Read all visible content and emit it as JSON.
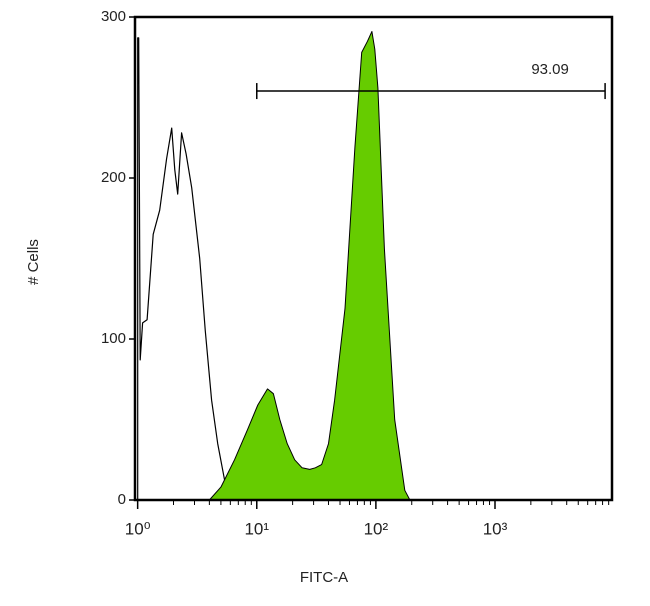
{
  "chart_data": {
    "type": "histogram-overlay",
    "xlabel": "FITC-A",
    "ylabel": "# Cells",
    "xscale": "log",
    "xlim": [
      0.95,
      9600
    ],
    "ylim": [
      0,
      300
    ],
    "xticks": [
      {
        "value": 1,
        "label": "10⁰"
      },
      {
        "value": 10,
        "label": "10¹"
      },
      {
        "value": 100,
        "label": "10²"
      },
      {
        "value": 1000,
        "label": "10³"
      }
    ],
    "xminorticks": [
      2,
      3,
      4,
      5,
      6,
      7,
      8,
      9,
      20,
      30,
      40,
      50,
      60,
      70,
      80,
      90,
      200,
      300,
      400,
      500,
      600,
      700,
      800,
      900,
      2000,
      3000,
      4000,
      5000,
      6000,
      7000,
      8000,
      9000
    ],
    "yticks": [
      0,
      100,
      200,
      300
    ],
    "series": [
      {
        "color": "#000000",
        "filled": false,
        "x": [
          1.0,
          1.0,
          1.02,
          1.05,
          1.1,
          1.2,
          1.35,
          1.53,
          1.75,
          1.93,
          2.05,
          2.17,
          2.34,
          2.55,
          2.84,
          3.32,
          3.7,
          4.18,
          4.7,
          5.38,
          6.2,
          7.2
        ],
        "values": [
          0,
          287,
          287,
          87,
          110,
          112,
          165,
          180,
          212,
          231,
          205,
          190,
          228,
          215,
          194,
          150,
          105,
          62,
          35,
          12,
          4,
          0
        ]
      },
      {
        "color": "#66cc00",
        "filled": true,
        "x": [
          4.0,
          5.0,
          6.5,
          8.4,
          10.2,
          12.3,
          13.8,
          15.6,
          18.0,
          20.8,
          24.0,
          27.8,
          31.0,
          35.0,
          40.0,
          45.0,
          55.0,
          66.6,
          76.0,
          85.0,
          92.6,
          98.0,
          104.0,
          118.0,
          144.0,
          175.0,
          193.0
        ],
        "values": [
          0,
          8,
          25,
          44,
          59,
          69,
          66,
          50,
          35,
          25,
          20,
          19,
          20,
          22,
          35,
          62,
          119,
          219,
          278,
          285,
          291,
          280,
          256,
          156,
          50,
          6,
          0
        ]
      }
    ],
    "annotation": {
      "text": "93.09",
      "x": [
        10,
        8400
      ],
      "y": 254
    }
  }
}
